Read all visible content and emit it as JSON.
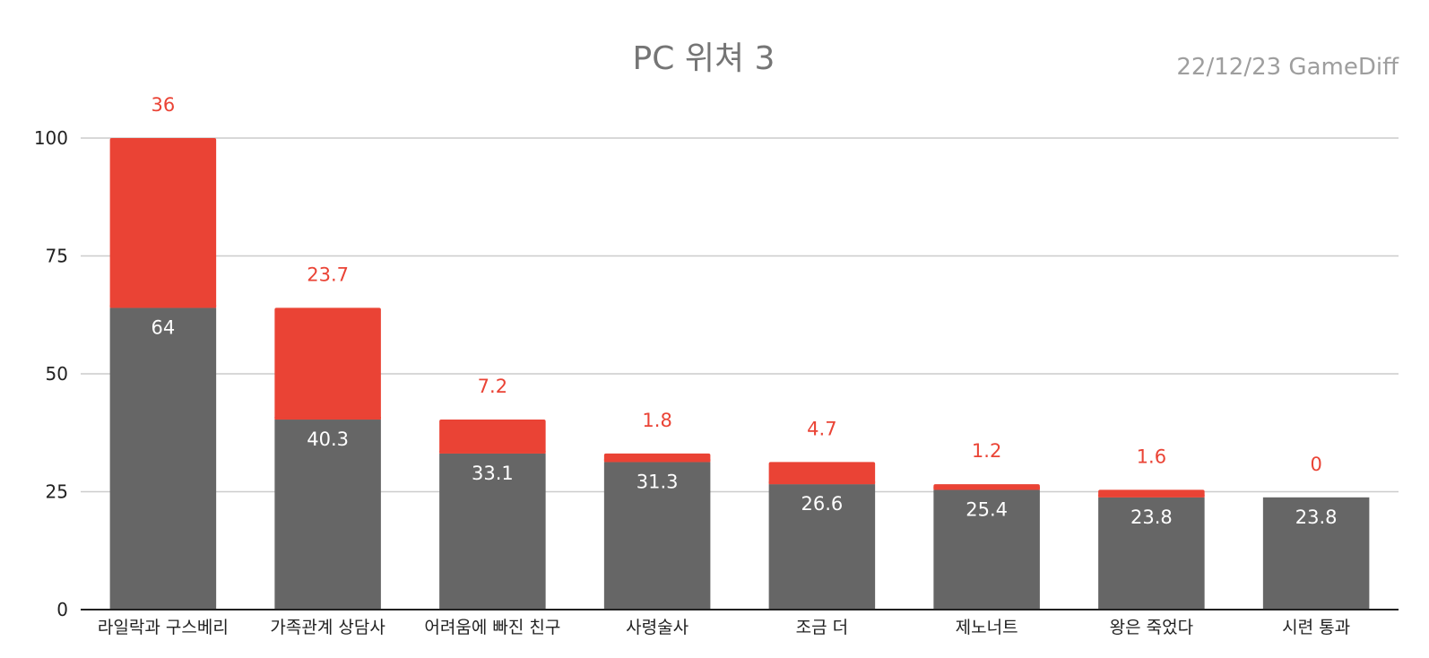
{
  "colors": {
    "base": "#666666",
    "increase": "#ea4335",
    "grid": "#cccccc",
    "axis": "#222222",
    "title": "#757575",
    "subtitle": "#9e9e9e",
    "inner_label": "#ffffff"
  },
  "chart_data": {
    "type": "bar",
    "stacked": true,
    "title": "PC 위쳐 3",
    "subtitle": "22/12/23  GameDiff",
    "xlabel": "",
    "ylabel": "",
    "ylim": [
      0,
      100
    ],
    "yticks": [
      0,
      25,
      50,
      75,
      100
    ],
    "grid": true,
    "legend": "none",
    "categories": [
      "라일락과 구스베리",
      "가족관계 상담사",
      "어려움에 빠진 친구",
      "사령술사",
      "조금 더",
      "제노너트",
      "왕은 죽었다",
      "시련 통과"
    ],
    "series": [
      {
        "values": [
          64,
          40.3,
          33.1,
          31.3,
          26.6,
          25.4,
          23.8,
          23.8
        ]
      },
      {
        "values": [
          36,
          23.7,
          7.2,
          1.8,
          4.7,
          1.2,
          1.6,
          0
        ]
      }
    ]
  }
}
